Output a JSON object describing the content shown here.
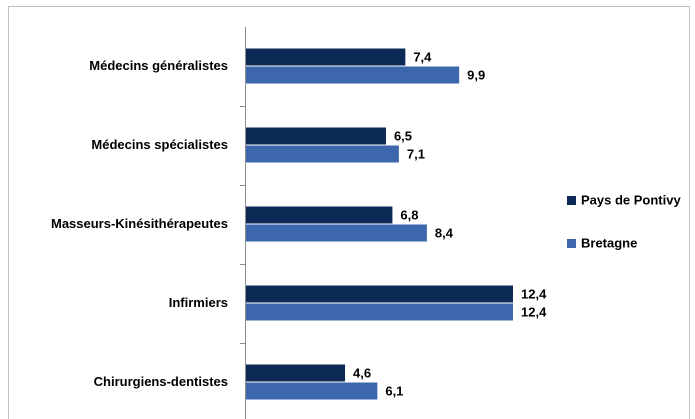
{
  "chart_data": {
    "type": "hbar",
    "categories": [
      "Médecins généralistes",
      "Médecins spécialistes",
      "Masseurs-Kinésithérapeutes",
      "Infirmiers",
      "Chirurgiens-dentistes"
    ],
    "series": [
      {
        "name": "Pays de Pontivy",
        "color": "#0d2a56",
        "values": [
          7.4,
          6.5,
          6.8,
          12.4,
          4.6
        ],
        "value_labels": [
          "7,4",
          "6,5",
          "6,8",
          "12,4",
          "4,6"
        ]
      },
      {
        "name": "Bretagne",
        "color": "#3d67ad",
        "values": [
          9.9,
          7.1,
          8.4,
          12.4,
          6.1
        ],
        "value_labels": [
          "9,9",
          "7,1",
          "8,4",
          "12,4",
          "6,1"
        ]
      }
    ],
    "legend": "right"
  }
}
